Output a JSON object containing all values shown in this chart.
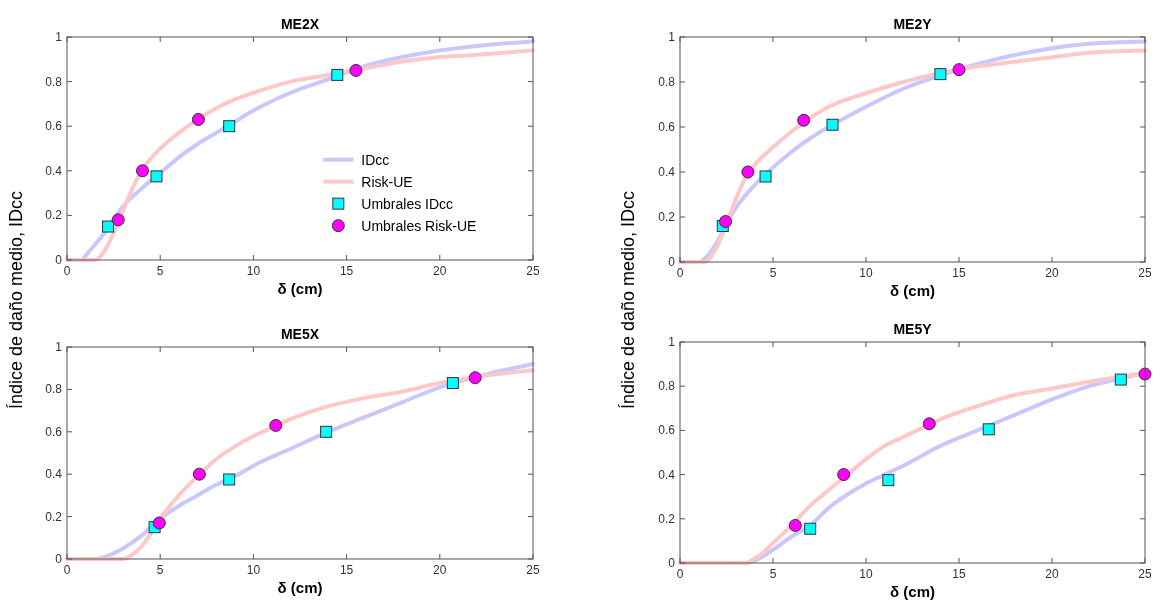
{
  "chart_data": [
    {
      "type": "line",
      "title": "ME2X",
      "xlabel": "δ (cm)",
      "ylabel": "Índice de daño medio, IDcc",
      "xlim": [
        0,
        25
      ],
      "ylim": [
        0,
        1
      ],
      "xticks": [
        0,
        5,
        10,
        15,
        20,
        25
      ],
      "yticks": [
        0,
        0.2,
        0.4,
        0.6,
        0.8,
        1
      ],
      "legend": "bottom right",
      "series": [
        {
          "name": "IDcc",
          "type": "line",
          "color": "#c8c8ff",
          "x": [
            0,
            0.8,
            1,
            2,
            3,
            4,
            5,
            6,
            7,
            8,
            9,
            10,
            12,
            14,
            16,
            18,
            20,
            22,
            25
          ],
          "values": [
            0,
            0,
            0.02,
            0.12,
            0.24,
            0.32,
            0.39,
            0.46,
            0.52,
            0.57,
            0.62,
            0.67,
            0.75,
            0.81,
            0.87,
            0.91,
            0.94,
            0.96,
            0.98
          ]
        },
        {
          "name": "Risk-UE",
          "type": "line",
          "color": "#ffc8c8",
          "x": [
            0,
            1.5,
            2,
            2.5,
            3,
            3.5,
            4,
            5,
            6,
            7,
            8,
            9,
            10,
            12,
            14,
            16,
            18,
            20,
            22,
            25
          ],
          "values": [
            0,
            0,
            0.04,
            0.12,
            0.22,
            0.32,
            0.4,
            0.5,
            0.57,
            0.63,
            0.68,
            0.72,
            0.75,
            0.8,
            0.83,
            0.86,
            0.89,
            0.91,
            0.92,
            0.94
          ]
        },
        {
          "name": "Umbrales IDcc",
          "type": "scatter",
          "marker": "square",
          "color": "#00ffff",
          "x": [
            2.2,
            4.8,
            8.7,
            14.5
          ],
          "values": [
            0.15,
            0.375,
            0.6,
            0.83
          ]
        },
        {
          "name": "Umbrales Risk-UE",
          "type": "scatter",
          "marker": "circle",
          "color": "#ff00ff",
          "x": [
            2.75,
            4.05,
            7.05,
            15.5
          ],
          "values": [
            0.18,
            0.4,
            0.63,
            0.85
          ]
        }
      ]
    },
    {
      "type": "line",
      "title": "ME2Y",
      "xlabel": "δ (cm)",
      "ylabel": "Índice de daño medio, IDcc",
      "xlim": [
        0,
        25
      ],
      "ylim": [
        0,
        1
      ],
      "xticks": [
        0,
        5,
        10,
        15,
        20,
        25
      ],
      "yticks": [
        0,
        0.2,
        0.4,
        0.6,
        0.8,
        1
      ],
      "series": [
        {
          "type": "line",
          "color": "#c8c8ff",
          "x": [
            0,
            1,
            1.5,
            2,
            2.5,
            3,
            4,
            5,
            6,
            7,
            8,
            10,
            12,
            14,
            16,
            18,
            20,
            22,
            25
          ],
          "values": [
            0,
            0,
            0.03,
            0.09,
            0.17,
            0.24,
            0.34,
            0.42,
            0.49,
            0.55,
            0.6,
            0.69,
            0.77,
            0.83,
            0.88,
            0.92,
            0.95,
            0.97,
            0.98
          ]
        },
        {
          "type": "line",
          "color": "#ffc8c8",
          "x": [
            0,
            1.3,
            2,
            2.5,
            3,
            3.5,
            4,
            5,
            6,
            7,
            8,
            10,
            12,
            14,
            16,
            18,
            20,
            22,
            25
          ],
          "values": [
            0,
            0,
            0.07,
            0.17,
            0.28,
            0.37,
            0.43,
            0.51,
            0.58,
            0.64,
            0.69,
            0.75,
            0.8,
            0.84,
            0.87,
            0.89,
            0.91,
            0.93,
            0.94
          ]
        },
        {
          "type": "scatter",
          "marker": "square",
          "color": "#00ffff",
          "x": [
            2.3,
            4.6,
            8.2,
            14.0
          ],
          "values": [
            0.16,
            0.38,
            0.61,
            0.835
          ]
        },
        {
          "type": "scatter",
          "marker": "circle",
          "color": "#ff00ff",
          "x": [
            2.45,
            3.65,
            6.65,
            15.0
          ],
          "values": [
            0.18,
            0.4,
            0.63,
            0.855
          ]
        }
      ]
    },
    {
      "type": "line",
      "title": "ME5X",
      "xlabel": "δ (cm)",
      "xlim": [
        0,
        25
      ],
      "ylim": [
        0,
        1
      ],
      "xticks": [
        0,
        5,
        10,
        15,
        20,
        25
      ],
      "yticks": [
        0,
        0.2,
        0.4,
        0.6,
        0.8,
        1
      ],
      "series": [
        {
          "type": "line",
          "color": "#c8c8ff",
          "x": [
            0,
            1.5,
            2,
            3,
            4,
            5,
            6,
            7,
            8,
            9,
            10,
            12,
            14,
            16,
            18,
            20,
            22,
            25
          ],
          "values": [
            0,
            0,
            0.01,
            0.05,
            0.11,
            0.19,
            0.25,
            0.3,
            0.35,
            0.39,
            0.44,
            0.52,
            0.6,
            0.67,
            0.74,
            0.81,
            0.86,
            0.92
          ]
        },
        {
          "type": "line",
          "color": "#ffc8c8",
          "x": [
            0,
            3,
            3.5,
            4,
            4.5,
            5,
            6,
            7,
            8,
            9,
            10,
            11,
            12,
            14,
            16,
            18,
            20,
            22,
            25
          ],
          "values": [
            0,
            0,
            0.02,
            0.06,
            0.12,
            0.19,
            0.3,
            0.39,
            0.47,
            0.53,
            0.58,
            0.62,
            0.66,
            0.72,
            0.76,
            0.79,
            0.83,
            0.86,
            0.89
          ]
        },
        {
          "type": "scatter",
          "marker": "square",
          "color": "#00ffff",
          "x": [
            4.7,
            8.7,
            13.9,
            20.7
          ],
          "values": [
            0.15,
            0.375,
            0.6,
            0.83
          ]
        },
        {
          "type": "scatter",
          "marker": "circle",
          "color": "#ff00ff",
          "x": [
            4.95,
            7.1,
            11.2,
            21.9
          ],
          "values": [
            0.17,
            0.4,
            0.63,
            0.855
          ]
        }
      ]
    },
    {
      "type": "line",
      "title": "ME5Y",
      "xlabel": "δ (cm)",
      "xlim": [
        0,
        25
      ],
      "ylim": [
        0,
        1
      ],
      "xticks": [
        0,
        5,
        10,
        15,
        20,
        25
      ],
      "yticks": [
        0,
        0.2,
        0.4,
        0.6,
        0.8,
        1
      ],
      "series": [
        {
          "type": "line",
          "color": "#c8c8ff",
          "x": [
            0,
            3.5,
            4,
            5,
            6,
            7,
            8,
            9,
            10,
            11,
            12,
            14,
            16,
            18,
            20,
            22,
            24,
            25
          ],
          "values": [
            0,
            0,
            0.01,
            0.06,
            0.12,
            0.17,
            0.25,
            0.31,
            0.36,
            0.4,
            0.44,
            0.53,
            0.6,
            0.67,
            0.74,
            0.8,
            0.84,
            0.86
          ]
        },
        {
          "type": "line",
          "color": "#ffc8c8",
          "x": [
            0,
            3.5,
            4,
            4.5,
            5,
            6,
            7,
            8,
            9,
            10,
            11,
            12,
            13,
            14,
            16,
            18,
            20,
            22,
            25
          ],
          "values": [
            0,
            0,
            0.02,
            0.05,
            0.09,
            0.17,
            0.26,
            0.33,
            0.4,
            0.47,
            0.53,
            0.57,
            0.61,
            0.65,
            0.71,
            0.76,
            0.79,
            0.82,
            0.86
          ]
        },
        {
          "type": "scatter",
          "marker": "square",
          "color": "#00ffff",
          "x": [
            7.0,
            11.2,
            16.6,
            23.7
          ],
          "values": [
            0.155,
            0.375,
            0.605,
            0.83
          ]
        },
        {
          "type": "scatter",
          "marker": "circle",
          "color": "#ff00ff",
          "x": [
            6.2,
            8.8,
            13.4,
            25
          ],
          "values": [
            0.17,
            0.4,
            0.63,
            0.855
          ]
        }
      ]
    }
  ]
}
